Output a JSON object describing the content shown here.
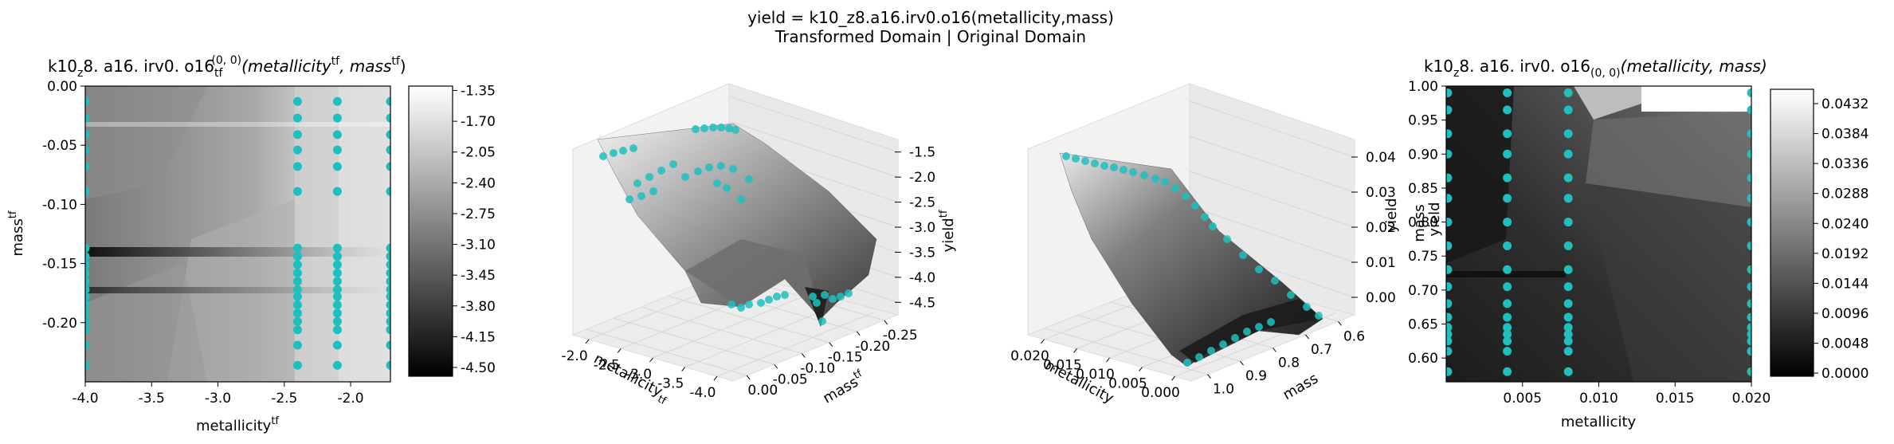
{
  "figure": {
    "suptitle_line1": "yield = k10_z8.a16.irv0.o16(metallicity,mass)",
    "suptitle_line2": "Transformed Domain | Original Domain"
  },
  "colors": {
    "points": "#1fbfbf",
    "surface_dark": "#111111",
    "surface_light": "#f2f2f2",
    "pane": "#f2f2f2",
    "grid": "#dcdcdc"
  },
  "chart_data": [
    {
      "id": "tf-heatmap",
      "type": "heatmap",
      "title_main": "k10",
      "title_sub": "z",
      "title_rest": "8. a16. irv0. o16",
      "title_sub2": "tf",
      "title_sup2": "(0, 0)",
      "title_args": "(metallicity",
      "title_args_sup": "tf",
      "title_args2": ", mass",
      "title_args2_sup": "tf",
      "title_close": ")",
      "xlabel": "metallicity",
      "xlabel_sup": "tf",
      "ylabel": "mass",
      "ylabel_sup": "tf",
      "xlim": [
        -4.0,
        -1.7
      ],
      "ylim": [
        -0.25,
        0.0
      ],
      "xticks": [
        "-4.0",
        "-3.5",
        "-3.0",
        "-2.5",
        "-2.0"
      ],
      "xtick_values": [
        -4.0,
        -3.5,
        -3.0,
        -2.5,
        -2.0
      ],
      "yticks": [
        "0.00",
        "-0.05",
        "-0.10",
        "-0.15",
        "-0.20"
      ],
      "ytick_values": [
        0.0,
        -0.05,
        -0.1,
        -0.15,
        -0.2
      ],
      "colorbar_range": [
        -4.6,
        -1.3
      ],
      "colorbar_ticks": [
        "-1.35",
        "-1.70",
        "-2.05",
        "-2.40",
        "-2.75",
        "-3.10",
        "-3.45",
        "-3.80",
        "-4.15",
        "-4.50"
      ],
      "colorbar_tick_values": [
        -1.35,
        -1.7,
        -2.05,
        -2.4,
        -2.75,
        -3.1,
        -3.45,
        -3.8,
        -4.15,
        -4.5
      ],
      "points": {
        "x": [
          -4.0,
          -2.4,
          -2.1,
          -1.7
        ],
        "y": [
          -0.013,
          -0.027,
          -0.041,
          -0.054,
          -0.068,
          -0.089,
          -0.137,
          -0.144,
          -0.151,
          -0.158,
          -0.165,
          -0.172,
          -0.178,
          -0.185,
          -0.192,
          -0.199,
          -0.206,
          -0.219,
          -0.236
        ]
      }
    },
    {
      "id": "tf-surface",
      "type": "surface",
      "xlabel": "metallicity",
      "xlabel_sup": "tf",
      "ylabel": "mass",
      "ylabel_sup": "tf",
      "zlabel": "yield",
      "zlabel_sup": "tf",
      "xticks": [
        "-2.0",
        "-2.5",
        "-3.0",
        "-3.5",
        "-4.0"
      ],
      "yticks": [
        "0.00",
        "-0.05",
        "-0.10",
        "-0.15",
        "-0.20",
        "-0.25"
      ],
      "zticks": [
        "-1.5",
        "-2.0",
        "-2.5",
        "-3.0",
        "-3.5",
        "-4.0",
        "-4.5"
      ]
    },
    {
      "id": "orig-surface",
      "type": "surface",
      "xlabel": "metallicity",
      "ylabel": "mass",
      "zlabel": "yield",
      "xticks": [
        "0.020",
        "0.015",
        "0.010",
        "0.005",
        "0.000"
      ],
      "yticks": [
        "1.0",
        "0.9",
        "0.8",
        "0.7",
        "0.6"
      ],
      "zticks": [
        "0.04",
        "0.03",
        "0.02",
        "0.01",
        "0.00"
      ]
    },
    {
      "id": "orig-heatmap",
      "type": "heatmap",
      "title_main": "k10",
      "title_sub": "z",
      "title_rest": "8. a16. irv0. o16",
      "title_sub2": "(0, 0)",
      "title_args": "(metallicity, mass)",
      "xlabel": "metallicity",
      "ylabel": "yield",
      "ylabel2": "mass",
      "xlim": [
        0.0,
        0.02
      ],
      "ylim": [
        0.565,
        1.0
      ],
      "xticks": [
        "0.005",
        "0.010",
        "0.015",
        "0.020"
      ],
      "xtick_values": [
        0.005,
        0.01,
        0.015,
        0.02
      ],
      "yticks": [
        "1.00",
        "0.95",
        "0.90",
        "0.85",
        "0.80",
        "0.75",
        "0.70",
        "0.65",
        "0.60"
      ],
      "ytick_values": [
        1.0,
        0.95,
        0.9,
        0.85,
        0.8,
        0.75,
        0.7,
        0.65,
        0.6
      ],
      "colorbar_range": [
        -0.0005,
        0.0455
      ],
      "colorbar_ticks": [
        "0.0432",
        "0.0384",
        "0.0336",
        "0.0288",
        "0.0240",
        "0.0192",
        "0.0144",
        "0.0096",
        "0.0048",
        "0.0000"
      ],
      "colorbar_tick_values": [
        0.0432,
        0.0384,
        0.0336,
        0.0288,
        0.024,
        0.0192,
        0.0144,
        0.0096,
        0.0048,
        0.0
      ],
      "points": {
        "x": [
          0.0001,
          0.004,
          0.008,
          0.02
        ],
        "y": [
          0.99,
          0.965,
          0.93,
          0.9,
          0.865,
          0.835,
          0.8,
          0.765,
          0.73,
          0.705,
          0.68,
          0.66,
          0.645,
          0.635,
          0.625,
          0.61,
          0.58
        ]
      }
    }
  ]
}
